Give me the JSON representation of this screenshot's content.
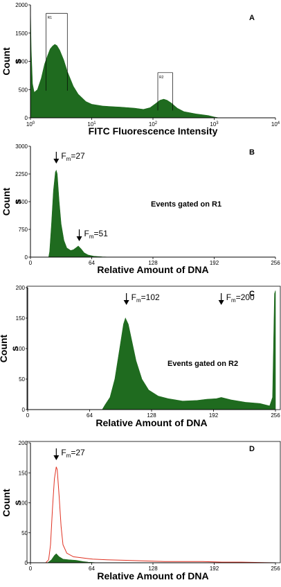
{
  "colors": {
    "fill": "#1f6b1f",
    "line": "#e03020",
    "axis": "#000000"
  },
  "chart_data": [
    {
      "panel": "A",
      "type": "area",
      "xscale": "log",
      "xlim": [
        1,
        10000
      ],
      "ylim": [
        0,
        2000
      ],
      "xlabel": "FITC Fluorescence Intensity",
      "ylabel": [
        "Count",
        "s"
      ],
      "xticks": [
        {
          "v": 1,
          "base": "10",
          "exp": "0"
        },
        {
          "v": 10,
          "base": "10",
          "exp": "1"
        },
        {
          "v": 100,
          "base": "10",
          "exp": "2"
        },
        {
          "v": 1000,
          "base": "10",
          "exp": "3"
        },
        {
          "v": 10000,
          "base": "10",
          "exp": "4"
        }
      ],
      "yticks": [
        0,
        500,
        1000,
        1500,
        2000
      ],
      "gates": [
        {
          "name": "R1",
          "x0": 1.8,
          "x1": 4.0,
          "top": 1850,
          "bottom": 480
        },
        {
          "name": "R2",
          "x0": 120,
          "x1": 210,
          "top": 800,
          "bottom": 130
        }
      ],
      "series": [
        {
          "style": "fill",
          "points": [
            [
              1,
              1950
            ],
            [
              1.03,
              1200
            ],
            [
              1.08,
              600
            ],
            [
              1.15,
              450
            ],
            [
              1.3,
              500
            ],
            [
              1.5,
              700
            ],
            [
              1.7,
              950
            ],
            [
              1.9,
              1100
            ],
            [
              2.1,
              1220
            ],
            [
              2.3,
              1270
            ],
            [
              2.5,
              1300
            ],
            [
              2.7,
              1280
            ],
            [
              3.0,
              1200
            ],
            [
              3.5,
              1020
            ],
            [
              4.0,
              820
            ],
            [
              5.0,
              560
            ],
            [
              6.0,
              420
            ],
            [
              8.0,
              290
            ],
            [
              10,
              240
            ],
            [
              15,
              210
            ],
            [
              20,
              200
            ],
            [
              30,
              190
            ],
            [
              50,
              170
            ],
            [
              70,
              150
            ],
            [
              90,
              180
            ],
            [
              110,
              250
            ],
            [
              130,
              310
            ],
            [
              150,
              330
            ],
            [
              170,
              310
            ],
            [
              200,
              260
            ],
            [
              250,
              170
            ],
            [
              320,
              110
            ],
            [
              500,
              70
            ],
            [
              800,
              40
            ],
            [
              1000,
              15
            ],
            [
              1200,
              0
            ]
          ]
        }
      ]
    },
    {
      "panel": "B",
      "type": "area",
      "xlim": [
        0,
        256
      ],
      "ylim": [
        0,
        3000
      ],
      "xlabel": "Relative Amount of DNA",
      "ylabel": [
        "Count",
        "s"
      ],
      "xticks": [
        0,
        64,
        128,
        192,
        256
      ],
      "yticks": [
        0,
        750,
        1500,
        2250,
        3000
      ],
      "annotations": [
        {
          "text": "F",
          "sub": "m",
          "value": "=27",
          "x": 27
        },
        {
          "text": "F",
          "sub": "m",
          "value": "=51",
          "x": 51
        }
      ],
      "note": "Events gated on R1",
      "series": [
        {
          "style": "fill",
          "points": [
            [
              0,
              0
            ],
            [
              19,
              0
            ],
            [
              20,
              150
            ],
            [
              22,
              900
            ],
            [
              24,
              1800
            ],
            [
              26,
              2300
            ],
            [
              27,
              2350
            ],
            [
              28,
              2250
            ],
            [
              30,
              1500
            ],
            [
              32,
              900
            ],
            [
              35,
              450
            ],
            [
              38,
              250
            ],
            [
              42,
              180
            ],
            [
              45,
              200
            ],
            [
              48,
              260
            ],
            [
              50,
              300
            ],
            [
              53,
              220
            ],
            [
              56,
              120
            ],
            [
              60,
              60
            ],
            [
              66,
              25
            ],
            [
              75,
              10
            ],
            [
              85,
              0
            ],
            [
              256,
              0
            ]
          ]
        }
      ]
    },
    {
      "panel": "C",
      "type": "area",
      "xlim": [
        0,
        256
      ],
      "ylim": [
        0,
        200
      ],
      "xlabel": "Relative Amount of DNA",
      "ylabel": [
        "Count",
        "s"
      ],
      "xticks": [
        0,
        64,
        128,
        192,
        256
      ],
      "yticks": [
        0,
        50,
        100,
        150,
        200
      ],
      "annotations": [
        {
          "text": "F",
          "sub": "m",
          "value": "=102",
          "x": 102
        },
        {
          "text": "F",
          "sub": "m",
          "value": "=200",
          "x": 200
        }
      ],
      "note": "Events gated on R2",
      "series": [
        {
          "style": "fill",
          "points": [
            [
              0,
              0
            ],
            [
              77,
              0
            ],
            [
              80,
              8
            ],
            [
              85,
              20
            ],
            [
              90,
              50
            ],
            [
              95,
              100
            ],
            [
              99,
              140
            ],
            [
              101,
              150
            ],
            [
              104,
              140
            ],
            [
              108,
              110
            ],
            [
              112,
              80
            ],
            [
              118,
              50
            ],
            [
              125,
              32
            ],
            [
              135,
              22
            ],
            [
              145,
              18
            ],
            [
              160,
              14
            ],
            [
              175,
              15
            ],
            [
              185,
              17
            ],
            [
              195,
              18
            ],
            [
              200,
              20
            ],
            [
              210,
              16
            ],
            [
              225,
              12
            ],
            [
              240,
              10
            ],
            [
              250,
              6
            ],
            [
              253,
              20
            ],
            [
              255,
              190
            ],
            [
              256,
              195
            ],
            [
              256,
              0
            ]
          ]
        }
      ]
    },
    {
      "panel": "D",
      "type": "area",
      "xlim": [
        0,
        256
      ],
      "ylim": [
        0,
        200
      ],
      "xlabel": "Relative Amount of DNA",
      "ylabel": [
        "Count",
        "s"
      ],
      "xticks": [
        0,
        64,
        128,
        192,
        256
      ],
      "yticks": [
        0,
        50,
        100,
        150,
        200
      ],
      "annotations": [
        {
          "text": "F",
          "sub": "m",
          "value": "=27",
          "x": 27
        }
      ],
      "series": [
        {
          "style": "line",
          "points": [
            [
              0,
              0
            ],
            [
              16,
              0
            ],
            [
              19,
              5
            ],
            [
              21,
              30
            ],
            [
              23,
              90
            ],
            [
              25,
              140
            ],
            [
              27,
              160
            ],
            [
              28,
              155
            ],
            [
              30,
              110
            ],
            [
              32,
              60
            ],
            [
              34,
              30
            ],
            [
              38,
              16
            ],
            [
              45,
              10
            ],
            [
              55,
              8
            ],
            [
              65,
              6
            ],
            [
              80,
              5
            ],
            [
              100,
              4
            ],
            [
              120,
              3
            ],
            [
              140,
              2
            ],
            [
              160,
              2
            ],
            [
              180,
              2
            ],
            [
              200,
              1
            ],
            [
              220,
              1
            ],
            [
              256,
              0
            ]
          ]
        },
        {
          "style": "fill",
          "points": [
            [
              0,
              0
            ],
            [
              18,
              0
            ],
            [
              22,
              5
            ],
            [
              25,
              12
            ],
            [
              27,
              15
            ],
            [
              30,
              10
            ],
            [
              34,
              6
            ],
            [
              40,
              5
            ],
            [
              48,
              4
            ],
            [
              55,
              2
            ],
            [
              60,
              1
            ],
            [
              70,
              0
            ],
            [
              256,
              0
            ]
          ]
        }
      ]
    }
  ],
  "panels": [
    {
      "label": "A"
    },
    {
      "label": "B"
    },
    {
      "label": "C"
    },
    {
      "label": "D"
    }
  ]
}
